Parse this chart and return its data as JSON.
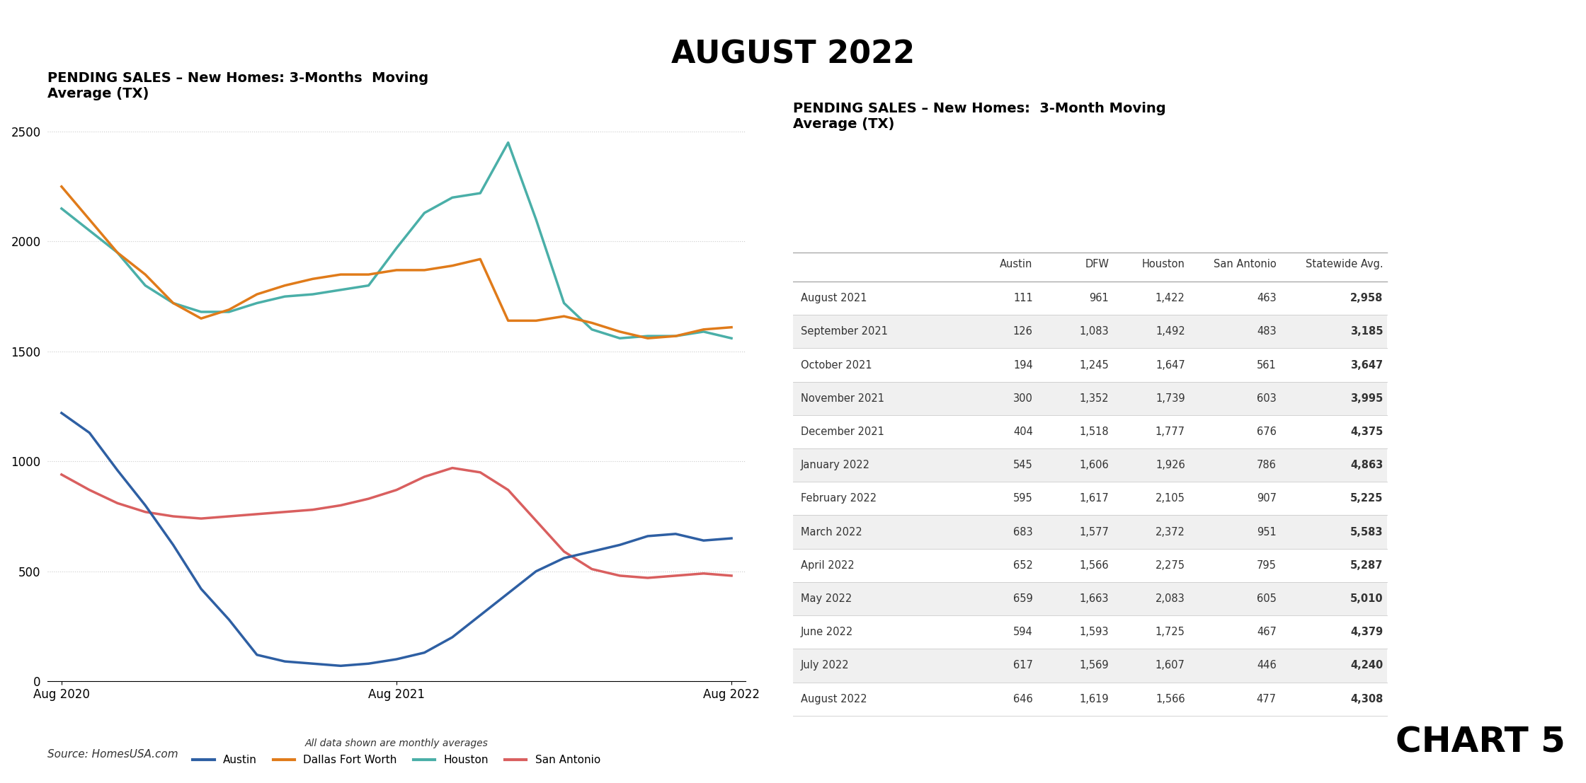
{
  "title": "AUGUST 2022",
  "chart_title": "PENDING SALES – New Homes: 3-Months  Moving\nAverage (TX)",
  "table_title": "PENDING SALES – New Homes:  3-Month Moving\nAverage (TX)",
  "source": "Source: HomesUSA.com",
  "chart5_label": "CHART 5",
  "subtitle": "All data shown are monthly averages",
  "x_labels": [
    "Aug 2020",
    "Aug 2021",
    "Aug 2022"
  ],
  "austin_color": "#2e5fa3",
  "dfw_color": "#e07b1a",
  "houston_color": "#4aafa8",
  "san_antonio_color": "#d95f5f",
  "austin_data": [
    1220,
    1130,
    960,
    800,
    620,
    420,
    280,
    120,
    90,
    80,
    70,
    80,
    100,
    130,
    200,
    300,
    400,
    500,
    560,
    590,
    620,
    660,
    670,
    640,
    650
  ],
  "dfw_data": [
    2250,
    2100,
    1950,
    1850,
    1720,
    1650,
    1690,
    1760,
    1800,
    1830,
    1850,
    1850,
    1870,
    1870,
    1890,
    1920,
    1640,
    1640,
    1660,
    1630,
    1590,
    1560,
    1570,
    1600,
    1610
  ],
  "houston_data": [
    2150,
    2050,
    1950,
    1800,
    1720,
    1680,
    1680,
    1720,
    1750,
    1760,
    1780,
    1800,
    1970,
    2130,
    2200,
    2220,
    2450,
    2100,
    1720,
    1600,
    1560,
    1570,
    1570,
    1590,
    1560
  ],
  "san_antonio_data": [
    940,
    870,
    810,
    770,
    750,
    740,
    750,
    760,
    770,
    780,
    800,
    830,
    870,
    930,
    970,
    950,
    870,
    730,
    590,
    510,
    480,
    470,
    480,
    490,
    480
  ],
  "ylim": [
    0,
    2600
  ],
  "yticks": [
    0,
    500,
    1000,
    1500,
    2000,
    2500
  ],
  "table_rows": [
    [
      "August 2021",
      "111",
      "961",
      "1,422",
      "463",
      "2,958"
    ],
    [
      "September 2021",
      "126",
      "1,083",
      "1,492",
      "483",
      "3,185"
    ],
    [
      "October 2021",
      "194",
      "1,245",
      "1,647",
      "561",
      "3,647"
    ],
    [
      "November 2021",
      "300",
      "1,352",
      "1,739",
      "603",
      "3,995"
    ],
    [
      "December 2021",
      "404",
      "1,518",
      "1,777",
      "676",
      "4,375"
    ],
    [
      "January 2022",
      "545",
      "1,606",
      "1,926",
      "786",
      "4,863"
    ],
    [
      "February 2022",
      "595",
      "1,617",
      "2,105",
      "907",
      "5,225"
    ],
    [
      "March 2022",
      "683",
      "1,577",
      "2,372",
      "951",
      "5,583"
    ],
    [
      "April 2022",
      "652",
      "1,566",
      "2,275",
      "795",
      "5,287"
    ],
    [
      "May 2022",
      "659",
      "1,663",
      "2,083",
      "605",
      "5,010"
    ],
    [
      "June 2022",
      "594",
      "1,593",
      "1,725",
      "467",
      "4,379"
    ],
    [
      "July 2022",
      "617",
      "1,569",
      "1,607",
      "446",
      "4,240"
    ],
    [
      "August 2022",
      "646",
      "1,619",
      "1,566",
      "477",
      "4,308"
    ]
  ],
  "table_headers": [
    "",
    "Austin",
    "DFW",
    "Houston",
    "San Antonio",
    "Statewide Avg."
  ],
  "col_widths": [
    0.22,
    0.1,
    0.1,
    0.1,
    0.12,
    0.14
  ]
}
